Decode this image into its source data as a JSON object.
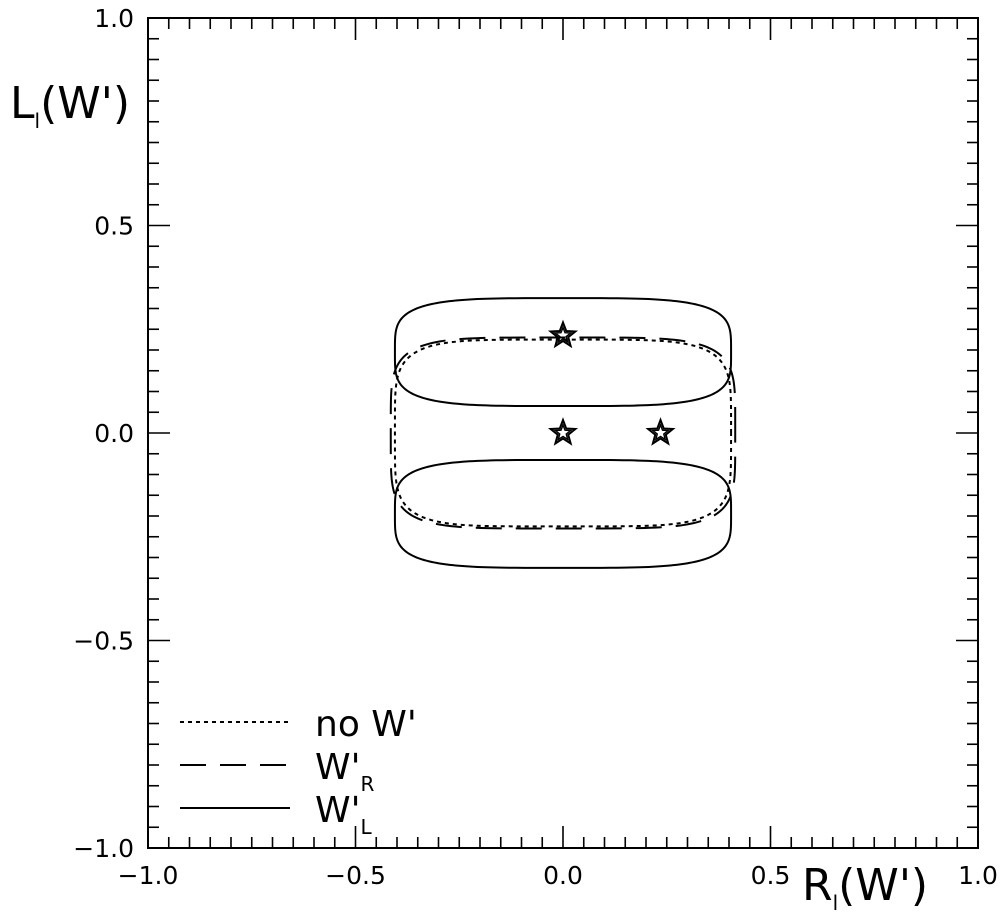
{
  "chart_data": {
    "type": "line",
    "xlabel": {
      "main": "R",
      "sub": "l",
      "arg": "(W')"
    },
    "ylabel": {
      "main": "L",
      "sub": "l",
      "arg": "(W')"
    },
    "xlim": [
      -1.0,
      1.0
    ],
    "ylim": [
      -1.0,
      1.0
    ],
    "xticks": [
      -1.0,
      -0.5,
      0.0,
      0.5,
      1.0
    ],
    "xtick_labels": [
      "−1.0",
      "−0.5",
      "0.0",
      "0.5",
      "1.0"
    ],
    "yticks": [
      -1.0,
      -0.5,
      0.0,
      0.5,
      1.0
    ],
    "ytick_labels": [
      "−1.0",
      "−0.5",
      "0.0",
      "0.5",
      "1.0"
    ],
    "grid": false,
    "legend_position": "bottom-left",
    "series": [
      {
        "name": "no W'",
        "legend": {
          "main": "no  W'",
          "sub": ""
        },
        "style": "dotted",
        "contours": [
          {
            "type": "ellipse",
            "center": [
              0.0,
              0.0
            ],
            "rx": 0.405,
            "ry": 0.225,
            "squareness": 5
          }
        ]
      },
      {
        "name": "W'R",
        "legend": {
          "main": "W'",
          "sub": "R"
        },
        "style": "dashed",
        "contours": [
          {
            "type": "ellipse",
            "center": [
              0.0,
              0.0
            ],
            "rx": 0.415,
            "ry": 0.23,
            "squareness": 5
          }
        ]
      },
      {
        "name": "W'L",
        "legend": {
          "main": "W'",
          "sub": "L"
        },
        "style": "solid",
        "contours": [
          {
            "type": "ellipse",
            "center": [
              0.0,
              0.195
            ],
            "rx": 0.405,
            "ry": 0.13,
            "squareness": 4
          },
          {
            "type": "ellipse",
            "center": [
              0.0,
              -0.195
            ],
            "rx": 0.405,
            "ry": 0.13,
            "squareness": 4
          }
        ]
      }
    ],
    "markers": [
      {
        "shape": "star",
        "x": 0.0,
        "y": 0.235
      },
      {
        "shape": "star",
        "x": 0.0,
        "y": 0.0
      },
      {
        "shape": "star",
        "x": 0.235,
        "y": 0.0
      }
    ]
  }
}
